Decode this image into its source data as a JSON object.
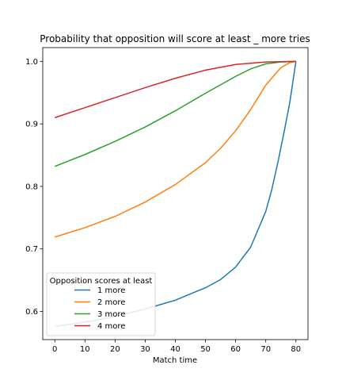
{
  "chart_data": {
    "type": "line",
    "title": "Probability that opposition will score at least _ more tries",
    "xlabel": "Match time",
    "ylabel": "",
    "xlim": [
      -4,
      84
    ],
    "ylim": [
      0.555,
      1.022
    ],
    "xticks": [
      0,
      10,
      20,
      30,
      40,
      50,
      60,
      70,
      80
    ],
    "yticks": [
      0.6,
      0.7,
      0.8,
      0.9,
      1.0
    ],
    "ytick_labels": [
      "0.6",
      "0.7",
      "0.8",
      "0.9",
      "1.0"
    ],
    "grid": false,
    "legend": {
      "title": "Opposition scores at least",
      "placement": "lower-left"
    },
    "series": [
      {
        "name": "1 more",
        "color": "#1f77b4",
        "x": [
          0,
          10,
          20,
          30,
          40,
          50,
          55,
          60,
          65,
          70,
          72,
          74,
          76,
          78,
          80
        ],
        "y": [
          0.576,
          0.583,
          0.592,
          0.604,
          0.618,
          0.638,
          0.651,
          0.671,
          0.703,
          0.76,
          0.795,
          0.838,
          0.885,
          0.935,
          1.0
        ]
      },
      {
        "name": "2 more",
        "color": "#ff7f0e",
        "x": [
          0,
          10,
          20,
          30,
          40,
          50,
          55,
          60,
          65,
          70,
          75,
          78,
          80
        ],
        "y": [
          0.719,
          0.734,
          0.752,
          0.775,
          0.803,
          0.838,
          0.861,
          0.889,
          0.923,
          0.962,
          0.99,
          0.998,
          1.0
        ]
      },
      {
        "name": "3 more",
        "color": "#2ca02c",
        "x": [
          0,
          10,
          20,
          30,
          40,
          50,
          60,
          65,
          70,
          75,
          80
        ],
        "y": [
          0.832,
          0.851,
          0.872,
          0.895,
          0.921,
          0.949,
          0.976,
          0.988,
          0.996,
          0.999,
          1.0
        ]
      },
      {
        "name": "4 more",
        "color": "#d62728",
        "x": [
          0,
          10,
          20,
          30,
          40,
          50,
          60,
          70,
          80
        ],
        "y": [
          0.91,
          0.926,
          0.942,
          0.958,
          0.973,
          0.986,
          0.995,
          0.999,
          1.0
        ]
      }
    ]
  }
}
